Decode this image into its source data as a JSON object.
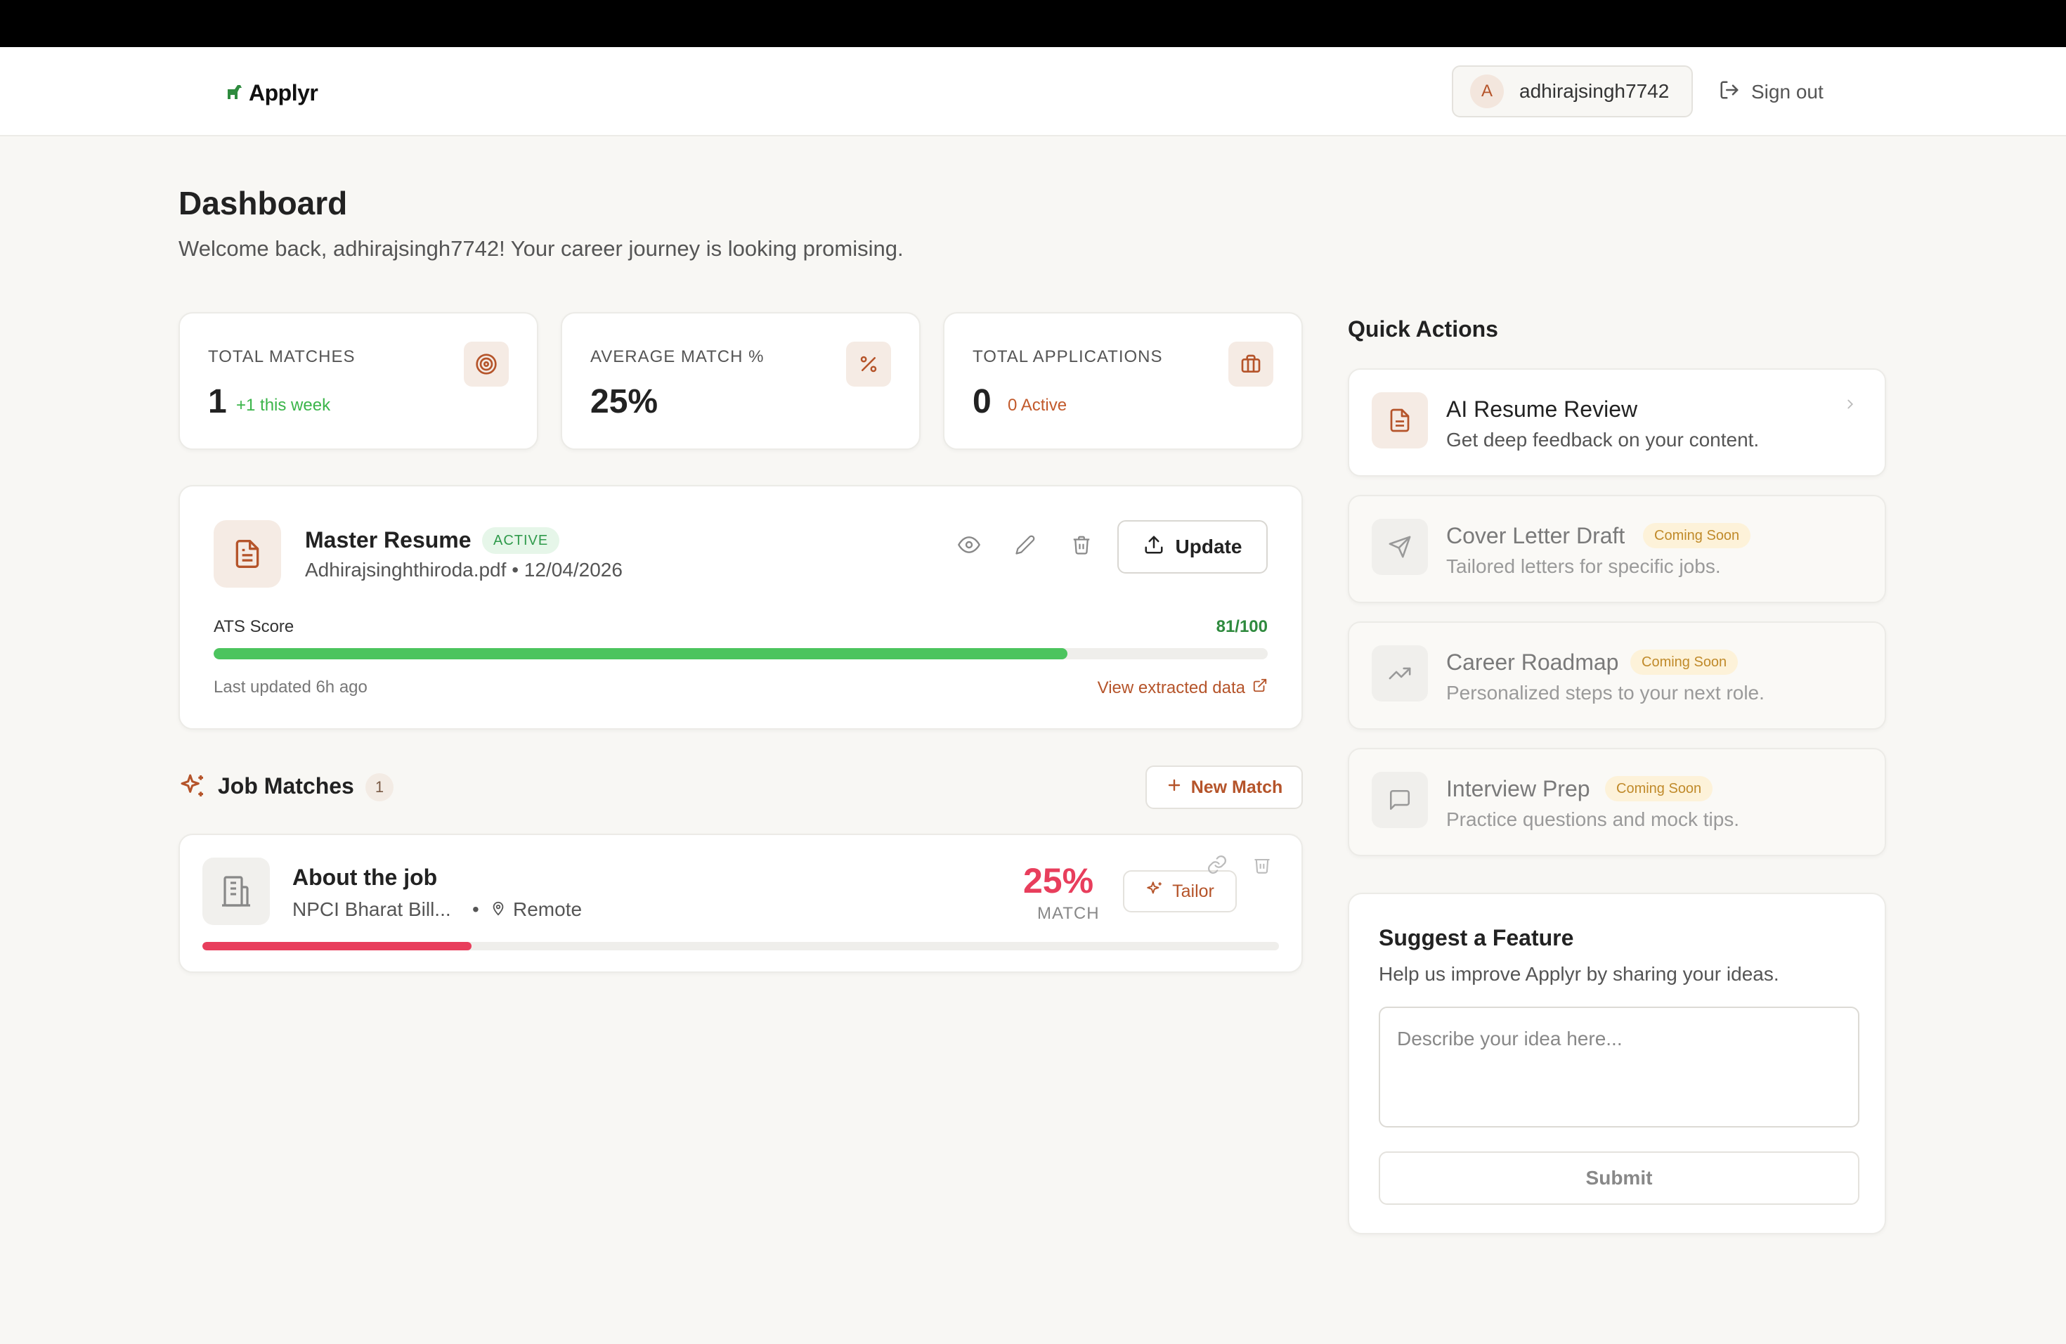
{
  "header": {
    "brand": "Applyr",
    "user": {
      "initial": "A",
      "name": "adhirajsingh7742"
    },
    "signout_label": "Sign out"
  },
  "page": {
    "title": "Dashboard",
    "subtitle": "Welcome back, adhirajsingh7742! Your career journey is looking promising."
  },
  "stats": [
    {
      "label": "TOTAL MATCHES",
      "value": "1",
      "note": "+1 this week",
      "note_color": "#3bb54a",
      "icon": "target-icon"
    },
    {
      "label": "AVERAGE MATCH %",
      "value": "25%",
      "note": "",
      "icon": "percent-icon"
    },
    {
      "label": "TOTAL APPLICATIONS",
      "value": "0",
      "note": "0 Active",
      "note_color": "#c25a2c",
      "icon": "briefcase-icon"
    }
  ],
  "resume": {
    "name": "Master Resume",
    "status": "ACTIVE",
    "meta": "Adhirajsinghthiroda.pdf • 12/04/2026",
    "update_label": "Update",
    "ats_label": "ATS Score",
    "ats_score": "81/100",
    "ats_fraction": 0.81,
    "last_updated": "Last updated 6h ago",
    "view_data_label": "View extracted data"
  },
  "job_matches": {
    "title": "Job Matches",
    "count": "1",
    "new_match_label": "New Match",
    "items": [
      {
        "title": "About the job",
        "company": "NPCI Bharat Bill...",
        "separator": "•",
        "location": "Remote",
        "match": "25%",
        "match_label": "MATCH",
        "match_fraction": 0.25,
        "tailor_label": "Tailor"
      }
    ]
  },
  "quick_actions": {
    "title": "Quick Actions",
    "items": [
      {
        "name": "AI Resume Review",
        "desc": "Get deep feedback on your content.",
        "badge": "",
        "icon": "document-icon"
      },
      {
        "name": "Cover Letter Draft",
        "desc": "Tailored letters for specific jobs.",
        "badge": "Coming Soon",
        "icon": "send-icon"
      },
      {
        "name": "Career Roadmap",
        "desc": "Personalized steps to your next role.",
        "badge": "Coming Soon",
        "icon": "trending-up-icon"
      },
      {
        "name": "Interview Prep",
        "desc": "Practice questions and mock tips.",
        "badge": "Coming Soon",
        "icon": "chat-icon"
      }
    ]
  },
  "suggest": {
    "title": "Suggest a Feature",
    "desc": "Help us improve Applyr by sharing your ideas.",
    "placeholder": "Describe your idea here...",
    "submit_label": "Submit"
  },
  "colors": {
    "accent": "#b5542a",
    "success": "#4cc45e",
    "danger": "#e83e5c",
    "background": "#f8f7f4"
  }
}
